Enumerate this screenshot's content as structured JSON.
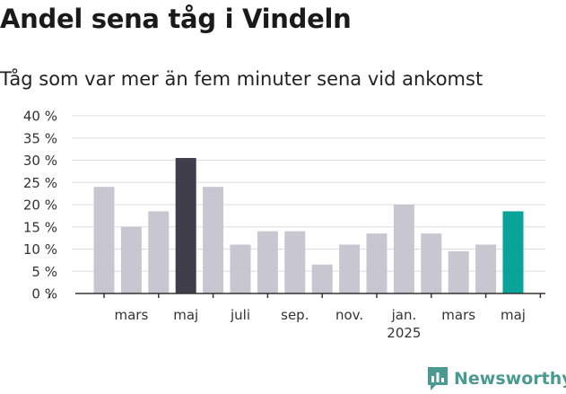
{
  "header": {
    "title": "Andel sena tåg i Vindeln",
    "subtitle": "Tåg som var mer än fem minuter sena vid ankomst"
  },
  "brand": {
    "name": "Newsworthy"
  },
  "colors": {
    "bar_default": "#c8c6d0",
    "bar_highlight_dark": "#3f3e4a",
    "bar_highlight_latest": "#0aa39a",
    "grid": "#dddddd",
    "axis": "#333333",
    "brand": "#4a9a92"
  },
  "chart_data": {
    "type": "bar",
    "categories": [
      "2024-02",
      "2024-03",
      "2024-04",
      "2024-05",
      "2024-06",
      "2024-07",
      "2024-08",
      "2024-09",
      "2024-10",
      "2024-11",
      "2024-12",
      "2025-01",
      "2025-02",
      "2025-03",
      "2025-04",
      "2025-05"
    ],
    "values": [
      24,
      15,
      18.5,
      30.5,
      24,
      11,
      14,
      14,
      6.5,
      11,
      13.5,
      20,
      13.5,
      9.5,
      11,
      18.5
    ],
    "highlight": {
      "2024-05": "dark",
      "2025-05": "latest"
    },
    "x_tick_labels": [
      {
        "category": "2024-03",
        "label": "mars"
      },
      {
        "category": "2024-05",
        "label": "maj"
      },
      {
        "category": "2024-07",
        "label": "juli"
      },
      {
        "category": "2024-09",
        "label": "sep."
      },
      {
        "category": "2024-11",
        "label": "nov."
      },
      {
        "category": "2025-01",
        "label": "jan.",
        "sublabel": "2025"
      },
      {
        "category": "2025-03",
        "label": "mars"
      },
      {
        "category": "2025-05",
        "label": "maj"
      }
    ],
    "y_ticks": [
      0,
      5,
      10,
      15,
      20,
      25,
      30,
      35,
      40
    ],
    "y_tick_suffix": " %",
    "ylim": [
      0,
      40
    ],
    "grid": true,
    "legend": "none"
  }
}
